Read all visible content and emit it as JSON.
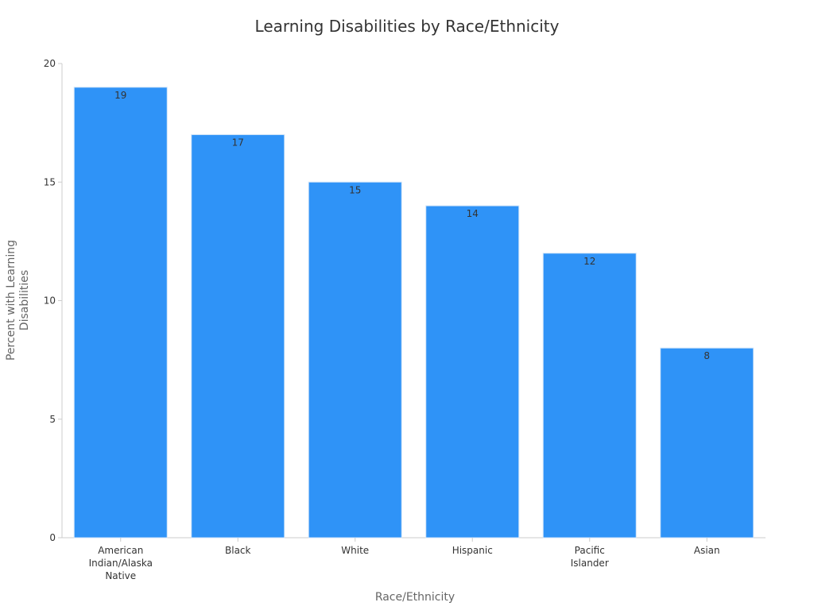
{
  "chart_data": {
    "type": "bar",
    "title": "Learning Disabilities by Race/Ethnicity",
    "xlabel": "Race/Ethnicity",
    "ylabel": "Percent with Learning Disabilities",
    "ylabel_lines": [
      "Percent with Learning",
      "Disabilities"
    ],
    "categories": [
      "American Indian/Alaska Native",
      "Black",
      "White",
      "Hispanic",
      "Pacific Islander",
      "Asian"
    ],
    "category_lines": [
      [
        "American",
        "Indian/Alaska",
        "Native"
      ],
      [
        "Black"
      ],
      [
        "White"
      ],
      [
        "Hispanic"
      ],
      [
        "Pacific",
        "Islander"
      ],
      [
        "Asian"
      ]
    ],
    "values": [
      19,
      17,
      15,
      14,
      12,
      8
    ],
    "ylim": [
      0,
      20
    ],
    "yticks": [
      0,
      5,
      10,
      15,
      20
    ],
    "grid": false,
    "legend": "none",
    "bar_color": "#2f93f7"
  }
}
